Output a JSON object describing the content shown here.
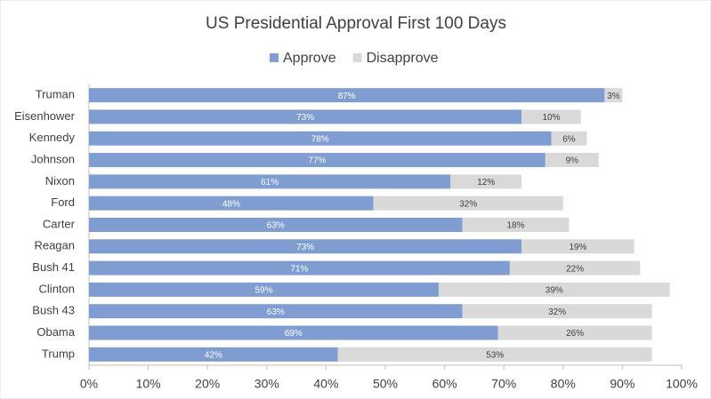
{
  "chart_data": {
    "type": "bar",
    "orientation": "horizontal",
    "stacked": true,
    "title": "US Presidential Approval First 100 Days",
    "categories": [
      "Truman",
      "Eisenhower",
      "Kennedy",
      "Johnson",
      "Nixon",
      "Ford",
      "Carter",
      "Reagan",
      "Bush 41",
      "Clinton",
      "Bush 43",
      "Obama",
      "Trump"
    ],
    "series": [
      {
        "name": "Approve",
        "color": "#7f9dd0",
        "label_color": "#ffffff",
        "values": [
          87,
          73,
          78,
          77,
          61,
          48,
          63,
          73,
          71,
          59,
          63,
          69,
          42
        ],
        "value_labels": [
          "87%",
          "73%",
          "78%",
          "77%",
          "61%",
          "48%",
          "63%",
          "73%",
          "71%",
          "59%",
          "63%",
          "69%",
          "42%"
        ]
      },
      {
        "name": "Disapprove",
        "color": "#d9d9d9",
        "label_color": "#404040",
        "values": [
          3,
          10,
          6,
          9,
          12,
          32,
          18,
          19,
          22,
          39,
          32,
          26,
          53
        ],
        "value_labels": [
          "3%",
          "10%",
          "6%",
          "9%",
          "12%",
          "32%",
          "18%",
          "19%",
          "22%",
          "39%",
          "32%",
          "26%",
          "53%"
        ]
      }
    ],
    "xlim": [
      0,
      100
    ],
    "xticks": [
      {
        "value": 0,
        "label": "0%"
      },
      {
        "value": 10,
        "label": "10%"
      },
      {
        "value": 20,
        "label": "20%"
      },
      {
        "value": 30,
        "label": "30%"
      },
      {
        "value": 40,
        "label": "40%"
      },
      {
        "value": 50,
        "label": "50%"
      },
      {
        "value": 60,
        "label": "60%"
      },
      {
        "value": 70,
        "label": "70%"
      },
      {
        "value": 80,
        "label": "80%"
      },
      {
        "value": 90,
        "label": "90%"
      },
      {
        "value": 100,
        "label": "100%"
      }
    ],
    "grid": false,
    "legend": "top"
  }
}
